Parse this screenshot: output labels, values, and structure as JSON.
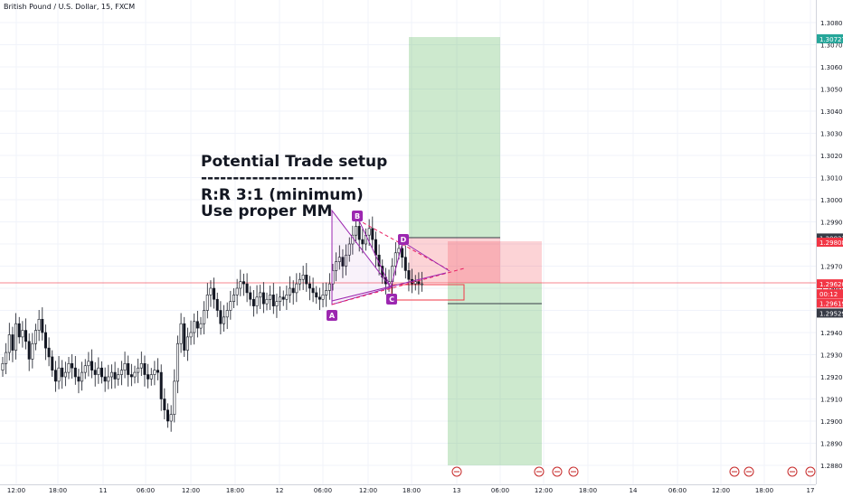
{
  "header": {
    "title": "British Pound / U.S. Dollar, 15, FXCM"
  },
  "annotation": {
    "line1": "Potential Trade setup",
    "line2": "------------------------",
    "line3": "R:R 3:1 (minimum)",
    "line4": "Use proper MM"
  },
  "chart_data": {
    "type": "candlestick",
    "title": "British Pound / U.S. Dollar, 15, FXCM",
    "y_ticks": [
      "1.30800",
      "1.30700",
      "1.30600",
      "1.30500",
      "1.30400",
      "1.30300",
      "1.30200",
      "1.30100",
      "1.30000",
      "1.29900",
      "1.29800",
      "1.29700",
      "1.29600",
      "1.29500",
      "1.29400",
      "1.29300",
      "1.29200",
      "1.29100",
      "1.29000",
      "1.28900",
      "1.28800"
    ],
    "ylim": [
      1.2876,
      1.3098
    ],
    "x_ticks": [
      "12:00",
      "18:00",
      "11",
      "06:00",
      "12:00",
      "18:00",
      "12",
      "06:00",
      "12:00",
      "18:00",
      "13",
      "06:00",
      "12:00",
      "18:00",
      "14",
      "06:00",
      "12:00",
      "18:00",
      "17"
    ],
    "price_labels": [
      {
        "label": "1.30727",
        "price": 1.30727,
        "color": "#26a69a"
      },
      {
        "label": "1.29827",
        "price": 1.29827,
        "color": "#363a45"
      },
      {
        "label": "1.29808",
        "price": 1.29808,
        "color": "#f23645"
      },
      {
        "label": "1.29620",
        "price": 1.2962,
        "color": "#f23645"
      },
      {
        "label": "00:12",
        "price": 1.29575,
        "color": "#f23645"
      },
      {
        "label": "1.29619",
        "price": 1.29533,
        "color": "#f23645"
      },
      {
        "label": "1.29529",
        "price": 1.29488,
        "color": "#363a45"
      }
    ],
    "pattern_points": [
      {
        "label": "A",
        "price": 1.2954
      },
      {
        "label": "B",
        "price": 1.2988
      },
      {
        "label": "C",
        "price": 1.2961
      },
      {
        "label": "D",
        "price": 1.2978
      }
    ],
    "candles_close": [
      1.2926,
      1.2931,
      1.2939,
      1.2932,
      1.2944,
      1.2938,
      1.2941,
      1.2936,
      1.2928,
      1.2935,
      1.2941,
      1.2946,
      1.294,
      1.2933,
      1.2929,
      1.2923,
      1.2918,
      1.2924,
      1.292,
      1.2922,
      1.2926,
      1.2924,
      1.292,
      1.2918,
      1.2922,
      1.2925,
      1.2927,
      1.2923,
      1.2921,
      1.2924,
      1.292,
      1.2918,
      1.292,
      1.2922,
      1.2919,
      1.2921,
      1.2923,
      1.2926,
      1.2921,
      1.292,
      1.2922,
      1.2924,
      1.2926,
      1.2921,
      1.2919,
      1.2921,
      1.2923,
      1.2922,
      1.291,
      1.2905,
      1.29,
      1.2903,
      1.2918,
      1.2935,
      1.2944,
      1.2932,
      1.2938,
      1.294,
      1.2945,
      1.2942,
      1.2944,
      1.295,
      1.2957,
      1.296,
      1.2955,
      1.295,
      1.2944,
      1.2947,
      1.295,
      1.2954,
      1.2957,
      1.296,
      1.2963,
      1.2962,
      1.2958,
      1.2955,
      1.2952,
      1.2956,
      1.2958,
      1.2953,
      1.2955,
      1.2957,
      1.2952,
      1.2954,
      1.2956,
      1.2955,
      1.2957,
      1.296,
      1.2958,
      1.2962,
      1.2964,
      1.2966,
      1.2962,
      1.296,
      1.2958,
      1.2956,
      1.2955,
      1.2957,
      1.2959,
      1.2962,
      1.2968,
      1.2972,
      1.2974,
      1.297,
      1.2975,
      1.298,
      1.2984,
      1.2988,
      1.2982,
      1.298,
      1.2984,
      1.2987,
      1.2982,
      1.2975,
      1.297,
      1.2965,
      1.2962,
      1.2963,
      1.297,
      1.2976,
      1.2978,
      1.2974,
      1.2968,
      1.2964,
      1.2962,
      1.2963,
      1.2962,
      1.2962
    ]
  }
}
